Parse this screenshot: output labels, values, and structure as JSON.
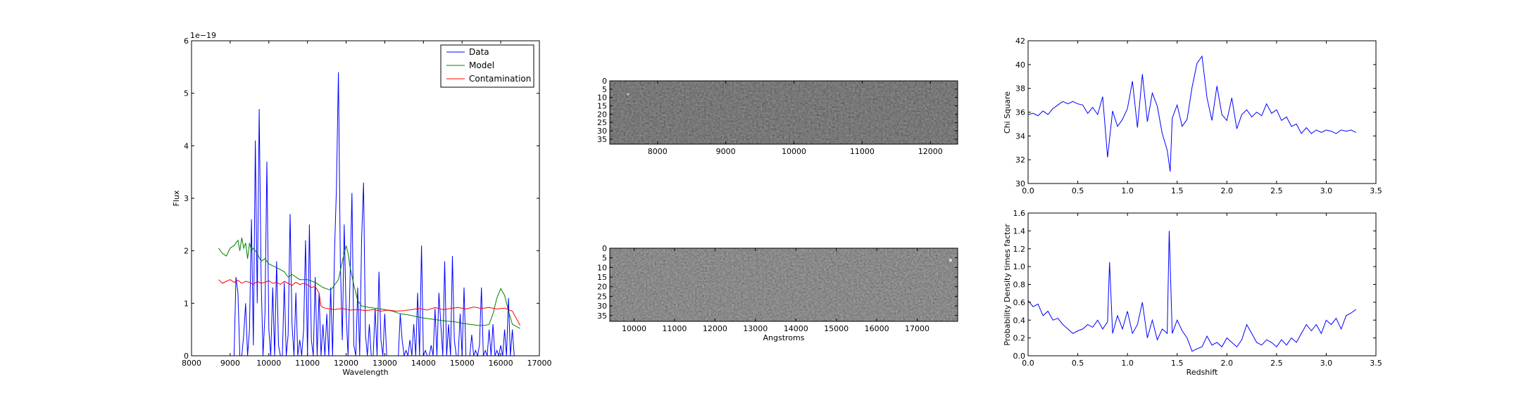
{
  "chart_data": [
    {
      "type": "line",
      "title": "",
      "xlabel": "Wavelength",
      "ylabel": "Flux",
      "offset_label": "1e−19",
      "xlim": [
        8000,
        17000
      ],
      "ylim": [
        0,
        6
      ],
      "xticks": [
        "8000",
        "9000",
        "10000",
        "11000",
        "12000",
        "13000",
        "14000",
        "15000",
        "16000",
        "17000"
      ],
      "yticks": [
        "0",
        "1",
        "2",
        "3",
        "4",
        "5",
        "6"
      ],
      "grid": false,
      "legend": "top-right",
      "series": [
        {
          "name": "Data",
          "color": "#0000ff",
          "x": [
            9100,
            9150,
            9200,
            9250,
            9300,
            9350,
            9400,
            9450,
            9500,
            9550,
            9600,
            9650,
            9700,
            9750,
            9800,
            9850,
            9900,
            9950,
            10000,
            10050,
            10100,
            10150,
            10200,
            10250,
            10300,
            10350,
            10400,
            10450,
            10500,
            10550,
            10600,
            10650,
            10700,
            10750,
            10800,
            10850,
            10900,
            10950,
            11000,
            11050,
            11100,
            11150,
            11200,
            11250,
            11300,
            11350,
            11400,
            11450,
            11500,
            11550,
            11600,
            11650,
            11700,
            11750,
            11800,
            11850,
            11900,
            11950,
            12000,
            12050,
            12100,
            12150,
            12200,
            12250,
            12300,
            12350,
            12400,
            12450,
            12500,
            12550,
            12600,
            12650,
            12700,
            12750,
            12800,
            12850,
            12900,
            12950,
            13000,
            13050,
            13100,
            13150,
            13200,
            13250,
            13300,
            13350,
            13400,
            13450,
            13500,
            13550,
            13600,
            13650,
            13700,
            13750,
            13800,
            13850,
            13900,
            13950,
            14000,
            14050,
            14100,
            14150,
            14200,
            14250,
            14300,
            14350,
            14400,
            14450,
            14500,
            14550,
            14600,
            14650,
            14700,
            14750,
            14800,
            14850,
            14900,
            14950,
            15000,
            15050,
            15100,
            15150,
            15200,
            15250,
            15300,
            15350,
            15400,
            15450,
            15500,
            15550,
            15600,
            15650,
            15700,
            15750,
            15800,
            15850,
            15900,
            15950,
            16000,
            16050,
            16100,
            16150,
            16200,
            16250,
            16300,
            16350
          ],
          "y": [
            0.0,
            1.5,
            1.2,
            0.0,
            0.0,
            0.4,
            1.0,
            0.0,
            0.5,
            2.6,
            0.2,
            4.1,
            1.0,
            4.7,
            1.5,
            0.0,
            0.8,
            3.7,
            0.5,
            0.0,
            1.3,
            0.0,
            1.8,
            0.2,
            0.0,
            0.0,
            1.4,
            0.0,
            0.4,
            2.7,
            0.6,
            0.0,
            1.2,
            0.0,
            0.3,
            0.0,
            0.5,
            2.2,
            0.0,
            2.5,
            0.3,
            0.0,
            1.5,
            0.0,
            1.2,
            0.0,
            0.6,
            0.0,
            0.8,
            0.0,
            1.3,
            0.0,
            2.0,
            3.2,
            5.4,
            1.8,
            0.3,
            2.5,
            0.8,
            0.0,
            1.4,
            3.1,
            0.2,
            0.0,
            1.3,
            0.0,
            2.2,
            3.3,
            0.4,
            0.0,
            0.6,
            0.0,
            0.0,
            0.9,
            0.0,
            1.6,
            0.3,
            0.0,
            0.8,
            0.0,
            0.0,
            0.0,
            0.0,
            0.0,
            0.0,
            0.0,
            0.8,
            0.3,
            0.0,
            0.1,
            0.0,
            0.3,
            0.0,
            0.6,
            0.0,
            1.2,
            0.0,
            2.1,
            0.0,
            0.1,
            0.0,
            0.0,
            0.2,
            0.0,
            0.9,
            0.0,
            1.2,
            0.6,
            0.0,
            1.8,
            0.0,
            0.6,
            0.0,
            1.9,
            0.3,
            0.0,
            0.0,
            0.8,
            0.0,
            1.3,
            0.0,
            0.0,
            0.0,
            0.4,
            0.0,
            0.1,
            0.0,
            0.2,
            1.3,
            0.0,
            0.1,
            0.0,
            0.5,
            0.0,
            0.6,
            0.0,
            0.1,
            0.0,
            0.2,
            0.0,
            0.5,
            0.0,
            1.1,
            0.0,
            0.5,
            0.0
          ]
        },
        {
          "name": "Model",
          "color": "#008000",
          "x": [
            8700,
            8800,
            8900,
            9000,
            9100,
            9200,
            9250,
            9300,
            9350,
            9400,
            9450,
            9500,
            9550,
            9600,
            9700,
            9800,
            9900,
            10000,
            10200,
            10400,
            10500,
            10600,
            10800,
            11000,
            11200,
            11400,
            11600,
            11700,
            11800,
            11900,
            12000,
            12050,
            12100,
            12200,
            12300,
            12400,
            12600,
            12800,
            13000,
            13200,
            13400,
            13600,
            13800,
            14000,
            14200,
            14400,
            14600,
            14800,
            15000,
            15200,
            15400,
            15600,
            15700,
            15800,
            15900,
            16000,
            16100,
            16200,
            16300,
            16500
          ],
          "y": [
            2.05,
            1.95,
            1.9,
            2.05,
            2.1,
            2.2,
            2.0,
            2.25,
            2.05,
            2.15,
            1.85,
            2.15,
            2.0,
            2.05,
            1.95,
            1.8,
            1.85,
            1.75,
            1.68,
            1.6,
            1.5,
            1.55,
            1.45,
            1.45,
            1.4,
            1.3,
            1.25,
            1.35,
            1.45,
            1.8,
            2.1,
            1.95,
            1.7,
            1.35,
            1.05,
            0.95,
            0.92,
            0.9,
            0.88,
            0.85,
            0.8,
            0.78,
            0.75,
            0.72,
            0.7,
            0.68,
            0.66,
            0.65,
            0.62,
            0.6,
            0.58,
            0.58,
            0.6,
            0.8,
            1.1,
            1.28,
            1.15,
            0.85,
            0.6,
            0.52
          ]
        },
        {
          "name": "Contamination",
          "color": "#ff0000",
          "x": [
            8700,
            8800,
            8900,
            9000,
            9100,
            9200,
            9300,
            9400,
            9500,
            9600,
            9700,
            9800,
            9900,
            10000,
            10100,
            10200,
            10300,
            10400,
            10500,
            10600,
            10700,
            10800,
            10900,
            11000,
            11100,
            11200,
            11300,
            11350,
            11400,
            11500,
            11700,
            11900,
            12100,
            12300,
            12500,
            12700,
            12900,
            13100,
            13300,
            13500,
            13700,
            13900,
            14100,
            14300,
            14500,
            14700,
            14900,
            15100,
            15300,
            15500,
            15700,
            15900,
            16100,
            16300,
            16500
          ],
          "y": [
            1.45,
            1.38,
            1.42,
            1.45,
            1.4,
            1.44,
            1.38,
            1.42,
            1.4,
            1.36,
            1.42,
            1.38,
            1.4,
            1.43,
            1.38,
            1.4,
            1.36,
            1.42,
            1.38,
            1.34,
            1.4,
            1.36,
            1.38,
            1.35,
            1.3,
            1.32,
            1.2,
            0.95,
            0.92,
            0.9,
            0.88,
            0.9,
            0.87,
            0.88,
            0.86,
            0.88,
            0.85,
            0.87,
            0.85,
            0.86,
            0.88,
            0.9,
            0.87,
            0.92,
            0.88,
            0.9,
            0.92,
            0.89,
            0.93,
            0.9,
            0.92,
            0.89,
            0.91,
            0.85,
            0.58
          ]
        }
      ]
    },
    {
      "type": "heatmap",
      "title": "",
      "xlabel": "",
      "ylabel": "",
      "xlim": [
        7300,
        12400
      ],
      "ylim": [
        38,
        0
      ],
      "xticks": [
        "8000",
        "9000",
        "10000",
        "11000",
        "12000"
      ],
      "yticks": [
        "0",
        "5",
        "10",
        "15",
        "20",
        "25",
        "30",
        "35"
      ],
      "colormap": "gray"
    },
    {
      "type": "heatmap",
      "title": "",
      "xlabel": "Angstroms",
      "ylabel": "",
      "xlim": [
        9400,
        18000
      ],
      "ylim": [
        38,
        0
      ],
      "xticks": [
        "10000",
        "11000",
        "12000",
        "13000",
        "14000",
        "15000",
        "16000",
        "17000"
      ],
      "yticks": [
        "0",
        "5",
        "10",
        "15",
        "20",
        "25",
        "30",
        "35"
      ],
      "colormap": "gray"
    },
    {
      "type": "line",
      "title": "",
      "xlabel": "",
      "ylabel": "Chi Square",
      "xlim": [
        0.0,
        3.5
      ],
      "ylim": [
        30,
        42
      ],
      "xticks": [
        "0.0",
        "0.5",
        "1.0",
        "1.5",
        "2.0",
        "2.5",
        "3.0",
        "3.5"
      ],
      "yticks": [
        "30",
        "32",
        "34",
        "36",
        "38",
        "40",
        "42"
      ],
      "grid": false,
      "series": [
        {
          "color": "#0000ff",
          "x": [
            0.0,
            0.05,
            0.1,
            0.15,
            0.2,
            0.25,
            0.3,
            0.35,
            0.4,
            0.45,
            0.5,
            0.55,
            0.6,
            0.65,
            0.7,
            0.75,
            0.8,
            0.85,
            0.9,
            0.95,
            1.0,
            1.05,
            1.1,
            1.15,
            1.2,
            1.25,
            1.3,
            1.35,
            1.4,
            1.43,
            1.45,
            1.5,
            1.55,
            1.6,
            1.65,
            1.7,
            1.75,
            1.8,
            1.85,
            1.9,
            1.95,
            2.0,
            2.05,
            2.1,
            2.15,
            2.2,
            2.25,
            2.3,
            2.35,
            2.4,
            2.45,
            2.5,
            2.55,
            2.6,
            2.65,
            2.7,
            2.75,
            2.8,
            2.85,
            2.9,
            2.95,
            3.0,
            3.05,
            3.1,
            3.15,
            3.2,
            3.25,
            3.3
          ],
          "y": [
            35.8,
            35.9,
            35.7,
            36.1,
            35.8,
            36.3,
            36.6,
            36.9,
            36.7,
            36.9,
            36.7,
            36.6,
            35.9,
            36.4,
            35.8,
            37.3,
            32.2,
            36.1,
            34.8,
            35.4,
            36.3,
            38.6,
            34.7,
            39.2,
            35.2,
            37.6,
            36.5,
            34.2,
            32.8,
            31.0,
            35.5,
            36.6,
            34.8,
            35.4,
            38.1,
            40.1,
            40.7,
            37.2,
            35.3,
            38.2,
            35.8,
            35.3,
            37.2,
            34.6,
            35.8,
            36.2,
            35.6,
            36.0,
            35.7,
            36.7,
            35.9,
            36.2,
            35.3,
            35.6,
            34.8,
            35.0,
            34.2,
            34.7,
            34.2,
            34.5,
            34.3,
            34.5,
            34.4,
            34.2,
            34.5,
            34.4,
            34.5,
            34.3
          ]
        }
      ]
    },
    {
      "type": "line",
      "title": "",
      "xlabel": "Redshift",
      "ylabel": "Probability Density times factor",
      "xlim": [
        0.0,
        3.5
      ],
      "ylim": [
        0.0,
        1.6
      ],
      "xticks": [
        "0.0",
        "0.5",
        "1.0",
        "1.5",
        "2.0",
        "2.5",
        "3.0",
        "3.5"
      ],
      "yticks": [
        "0.0",
        "0.2",
        "0.4",
        "0.6",
        "0.8",
        "1.0",
        "1.2",
        "1.4",
        "1.6"
      ],
      "grid": false,
      "series": [
        {
          "color": "#0000ff",
          "x": [
            0.0,
            0.05,
            0.1,
            0.15,
            0.2,
            0.25,
            0.3,
            0.35,
            0.4,
            0.45,
            0.5,
            0.55,
            0.6,
            0.65,
            0.7,
            0.75,
            0.8,
            0.82,
            0.85,
            0.9,
            0.95,
            1.0,
            1.05,
            1.1,
            1.15,
            1.2,
            1.25,
            1.3,
            1.35,
            1.4,
            1.42,
            1.45,
            1.5,
            1.55,
            1.6,
            1.65,
            1.7,
            1.75,
            1.8,
            1.85,
            1.9,
            1.95,
            2.0,
            2.05,
            2.1,
            2.15,
            2.2,
            2.25,
            2.3,
            2.35,
            2.4,
            2.45,
            2.5,
            2.55,
            2.6,
            2.65,
            2.7,
            2.75,
            2.8,
            2.85,
            2.9,
            2.95,
            3.0,
            3.05,
            3.1,
            3.15,
            3.2,
            3.25,
            3.3
          ],
          "y": [
            0.62,
            0.55,
            0.58,
            0.45,
            0.5,
            0.4,
            0.42,
            0.35,
            0.3,
            0.25,
            0.28,
            0.3,
            0.35,
            0.32,
            0.4,
            0.3,
            0.38,
            1.05,
            0.25,
            0.45,
            0.3,
            0.5,
            0.25,
            0.35,
            0.6,
            0.2,
            0.4,
            0.18,
            0.3,
            0.25,
            1.4,
            0.25,
            0.4,
            0.28,
            0.2,
            0.05,
            0.08,
            0.1,
            0.22,
            0.12,
            0.15,
            0.1,
            0.2,
            0.15,
            0.1,
            0.18,
            0.35,
            0.25,
            0.15,
            0.12,
            0.18,
            0.15,
            0.1,
            0.18,
            0.12,
            0.2,
            0.15,
            0.25,
            0.35,
            0.28,
            0.35,
            0.25,
            0.4,
            0.35,
            0.42,
            0.3,
            0.45,
            0.48,
            0.52
          ]
        }
      ]
    }
  ]
}
